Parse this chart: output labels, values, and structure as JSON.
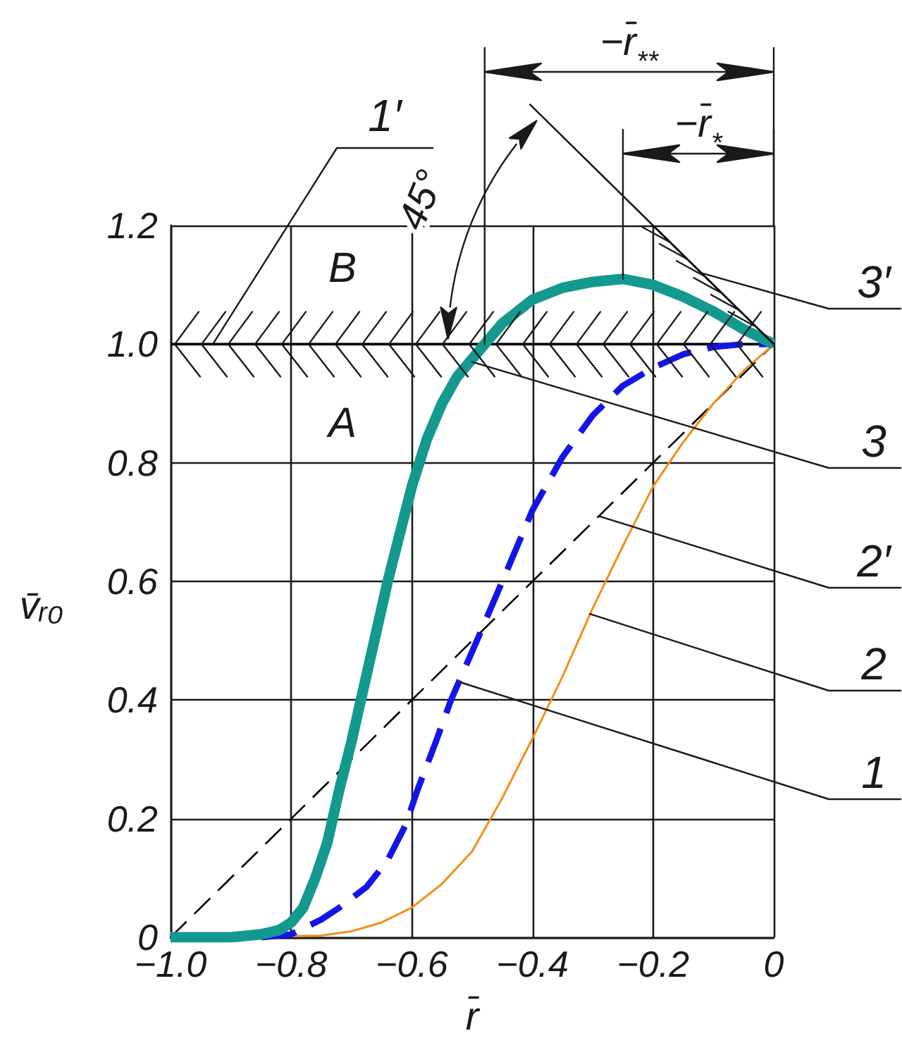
{
  "chart_data": {
    "type": "line",
    "xlabel": "r̄",
    "ylabel": "v̄ᵣ₀",
    "xlim": [
      -1.0,
      0
    ],
    "xticks": [
      {
        "value": -1.0,
        "label": "−1.0"
      },
      {
        "value": -0.8,
        "label": "−0.8"
      },
      {
        "value": -0.6,
        "label": "−0.6"
      },
      {
        "value": -0.4,
        "label": "−0.4"
      },
      {
        "value": -0.2,
        "label": "−0.2"
      },
      0
    ],
    "ylim": [
      0,
      1.2
    ],
    "yticks": [
      0,
      0.2,
      0.4,
      0.6,
      0.8,
      {
        "value": 1.0,
        "label": "1.0"
      },
      1.2
    ],
    "grid": true,
    "marker": "none",
    "series": [
      {
        "color": "#000000",
        "line_style": "dashed",
        "x": [
          -1.0,
          0
        ],
        "values": [
          0,
          1.0
        ]
      },
      {
        "color": "#f0901c",
        "line_style": "solid",
        "x": [
          -0.9,
          -0.75,
          -0.7,
          -0.65,
          -0.6,
          -0.55,
          -0.5,
          -0.45,
          -0.4,
          -0.35,
          -0.3,
          -0.25,
          -0.2,
          -0.15,
          -0.1,
          -0.05,
          0
        ],
        "values": [
          0,
          0.003,
          0.01,
          0.025,
          0.05,
          0.09,
          0.145,
          0.235,
          0.335,
          0.44,
          0.555,
          0.66,
          0.76,
          0.835,
          0.9,
          0.955,
          1.0
        ]
      },
      {
        "color": "#1414e6",
        "line_style": "dashed",
        "x": [
          -0.85,
          -0.8,
          -0.78,
          -0.75,
          -0.72,
          -0.675,
          -0.64,
          -0.61,
          -0.59,
          -0.56,
          -0.535,
          -0.49,
          -0.45,
          -0.4,
          -0.35,
          -0.3,
          -0.25,
          -0.2,
          -0.15,
          -0.1,
          -0.05,
          0
        ],
        "values": [
          0,
          0.005,
          0.015,
          0.03,
          0.05,
          0.085,
          0.13,
          0.19,
          0.25,
          0.33,
          0.4,
          0.505,
          0.6,
          0.72,
          0.81,
          0.88,
          0.93,
          0.96,
          0.983,
          0.995,
          1.0,
          1.0
        ]
      },
      {
        "color": "#14998f",
        "line_style": "solid",
        "x": [
          -1.0,
          -0.9,
          -0.85,
          -0.82,
          -0.8,
          -0.78,
          -0.76,
          -0.74,
          -0.72,
          -0.7,
          -0.68,
          -0.66,
          -0.64,
          -0.62,
          -0.6,
          -0.575,
          -0.55,
          -0.525,
          -0.5,
          -0.45,
          -0.4,
          -0.35,
          -0.3,
          -0.25,
          -0.2,
          -0.15,
          -0.1,
          -0.05,
          0
        ],
        "values": [
          0,
          0,
          0.005,
          0.012,
          0.025,
          0.05,
          0.1,
          0.16,
          0.25,
          0.33,
          0.42,
          0.51,
          0.6,
          0.68,
          0.76,
          0.84,
          0.9,
          0.945,
          0.975,
          1.035,
          1.075,
          1.095,
          1.105,
          1.11,
          1.1,
          1.08,
          1.055,
          1.025,
          1.0
        ]
      },
      {
        "color": "#000000",
        "line_style": "solid",
        "x": [
          -0.2,
          0
        ],
        "values": [
          1.2,
          1.0
        ]
      }
    ],
    "ref_lines": [
      {
        "axis": "y",
        "value": 1.0,
        "color": "#000000"
      }
    ],
    "annotations": [
      {
        "text": "1′",
        "x": -0.93,
        "y": 1.0
      },
      "B",
      "A",
      "−r̄$_{**}$",
      "−r̄$_{*}$",
      {
        "text": "3′",
        "x": -0.12,
        "y": 1.12
      },
      {
        "text": "3",
        "x": -0.5,
        "y": 0.97
      },
      {
        "text": "2′",
        "x": -0.29,
        "y": 0.71
      },
      {
        "text": "2",
        "x": -0.305,
        "y": 0.545
      },
      {
        "text": "1",
        "x": -0.52,
        "y": 0.43
      },
      "45°"
    ]
  }
}
